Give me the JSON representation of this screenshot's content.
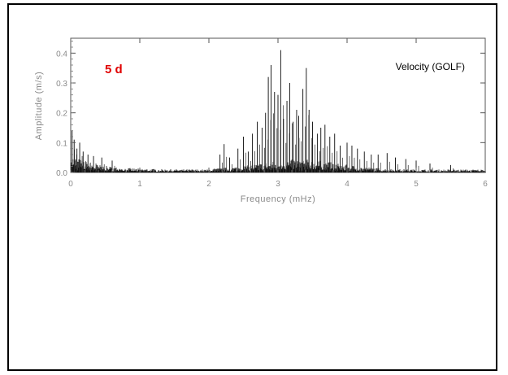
{
  "chart_data": {
    "type": "line",
    "title": "",
    "xlabel": "Frequency (mHz)",
    "ylabel": "Amplitude (m/s)",
    "xlim": [
      0,
      6
    ],
    "ylim": [
      0,
      0.45
    ],
    "x_ticks": [
      0,
      1,
      2,
      3,
      4,
      5,
      6
    ],
    "x_tick_labels": [
      "0",
      "1",
      "2",
      "3",
      "4",
      "5",
      "6"
    ],
    "y_ticks": [
      0,
      0.1,
      0.2,
      0.3,
      0.4
    ],
    "y_tick_labels": [
      "0.0",
      "0.1",
      "0.2",
      "0.3",
      "0.4"
    ],
    "grid": false,
    "legend": null,
    "annotations": [
      {
        "text": "5 d",
        "color": "#e00000",
        "position": "top-left"
      },
      {
        "text": "Velocity (GOLF)",
        "color": "#000000",
        "position": "top-right"
      }
    ],
    "series": [
      {
        "peaks": [
          {
            "x": 0.02,
            "y": 0.14
          },
          {
            "x": 0.05,
            "y": 0.11
          },
          {
            "x": 0.09,
            "y": 0.08
          },
          {
            "x": 0.13,
            "y": 0.1
          },
          {
            "x": 0.18,
            "y": 0.07
          },
          {
            "x": 0.25,
            "y": 0.06
          },
          {
            "x": 0.33,
            "y": 0.055
          },
          {
            "x": 0.45,
            "y": 0.05
          },
          {
            "x": 0.6,
            "y": 0.04
          },
          {
            "x": 2.16,
            "y": 0.06
          },
          {
            "x": 2.22,
            "y": 0.095
          },
          {
            "x": 2.3,
            "y": 0.05
          },
          {
            "x": 2.42,
            "y": 0.08
          },
          {
            "x": 2.5,
            "y": 0.12
          },
          {
            "x": 2.57,
            "y": 0.07
          },
          {
            "x": 2.63,
            "y": 0.13
          },
          {
            "x": 2.7,
            "y": 0.17
          },
          {
            "x": 2.77,
            "y": 0.15
          },
          {
            "x": 2.82,
            "y": 0.2
          },
          {
            "x": 2.86,
            "y": 0.32
          },
          {
            "x": 2.9,
            "y": 0.36
          },
          {
            "x": 2.95,
            "y": 0.27
          },
          {
            "x": 3.0,
            "y": 0.26
          },
          {
            "x": 3.04,
            "y": 0.41
          },
          {
            "x": 3.08,
            "y": 0.18
          },
          {
            "x": 3.13,
            "y": 0.24
          },
          {
            "x": 3.17,
            "y": 0.3
          },
          {
            "x": 3.22,
            "y": 0.17
          },
          {
            "x": 3.27,
            "y": 0.21
          },
          {
            "x": 3.3,
            "y": 0.19
          },
          {
            "x": 3.36,
            "y": 0.28
          },
          {
            "x": 3.41,
            "y": 0.35
          },
          {
            "x": 3.45,
            "y": 0.21
          },
          {
            "x": 3.5,
            "y": 0.17
          },
          {
            "x": 3.57,
            "y": 0.13
          },
          {
            "x": 3.62,
            "y": 0.15
          },
          {
            "x": 3.68,
            "y": 0.16
          },
          {
            "x": 3.75,
            "y": 0.12
          },
          {
            "x": 3.82,
            "y": 0.13
          },
          {
            "x": 3.9,
            "y": 0.09
          },
          {
            "x": 4.0,
            "y": 0.1
          },
          {
            "x": 4.07,
            "y": 0.09
          },
          {
            "x": 4.15,
            "y": 0.08
          },
          {
            "x": 4.25,
            "y": 0.07
          },
          {
            "x": 4.35,
            "y": 0.06
          },
          {
            "x": 4.45,
            "y": 0.06
          },
          {
            "x": 4.58,
            "y": 0.065
          },
          {
            "x": 4.7,
            "y": 0.05
          },
          {
            "x": 4.85,
            "y": 0.045
          },
          {
            "x": 5.0,
            "y": 0.04
          },
          {
            "x": 5.2,
            "y": 0.03
          },
          {
            "x": 5.5,
            "y": 0.025
          }
        ]
      }
    ]
  }
}
